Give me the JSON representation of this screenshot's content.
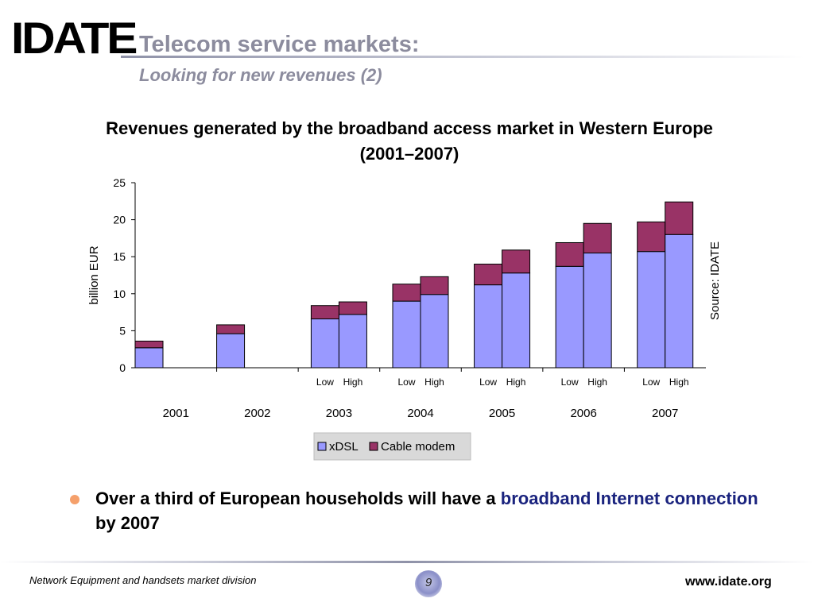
{
  "logo_text": "IDATE",
  "slide": {
    "title": "Telecom service markets:",
    "subtitle": "Looking for new revenues (2)"
  },
  "colors": {
    "xdsl": "#9999ff",
    "cable": "#993366",
    "title_gray": "#8c8c9e",
    "highlight": "#1a237e"
  },
  "chart_data": {
    "type": "bar",
    "stacked": true,
    "title": "Revenues generated by the broadband access market in Western Europe (2001–2007)",
    "ylabel": "billion EUR",
    "ylim": [
      0,
      25
    ],
    "yticks": [
      0,
      5,
      10,
      15,
      20,
      25
    ],
    "source_label": "Source: IDATE",
    "years": [
      "2001",
      "2002",
      "2003",
      "2004",
      "2005",
      "2006",
      "2007"
    ],
    "scenario_labels": {
      "low": "Low",
      "high": "High"
    },
    "bars": [
      {
        "year": "2001",
        "scenario": "",
        "xdsl": 2.7,
        "cable": 0.9
      },
      {
        "year": "2002",
        "scenario": "",
        "xdsl": 4.6,
        "cable": 1.2
      },
      {
        "year": "2003",
        "scenario": "Low",
        "xdsl": 6.6,
        "cable": 1.8
      },
      {
        "year": "2003",
        "scenario": "High",
        "xdsl": 7.2,
        "cable": 1.7
      },
      {
        "year": "2004",
        "scenario": "Low",
        "xdsl": 9.0,
        "cable": 2.3
      },
      {
        "year": "2004",
        "scenario": "High",
        "xdsl": 9.9,
        "cable": 2.4
      },
      {
        "year": "2005",
        "scenario": "Low",
        "xdsl": 11.2,
        "cable": 2.8
      },
      {
        "year": "2005",
        "scenario": "High",
        "xdsl": 12.8,
        "cable": 3.1
      },
      {
        "year": "2006",
        "scenario": "Low",
        "xdsl": 13.7,
        "cable": 3.2
      },
      {
        "year": "2006",
        "scenario": "High",
        "xdsl": 15.5,
        "cable": 4.0
      },
      {
        "year": "2007",
        "scenario": "Low",
        "xdsl": 15.7,
        "cable": 4.0
      },
      {
        "year": "2007",
        "scenario": "High",
        "xdsl": 18.0,
        "cable": 4.4
      }
    ],
    "legend": {
      "position": "bottom",
      "entries": [
        "xDSL",
        "Cable modem"
      ]
    }
  },
  "bullet": {
    "text_before": "Over a third of European households will have a ",
    "highlight": "broadband Internet connection",
    "text_after": " by 2007"
  },
  "footer": {
    "left": "Network Equipment and handsets market division",
    "page_number": "9",
    "right": "www.idate.org"
  }
}
